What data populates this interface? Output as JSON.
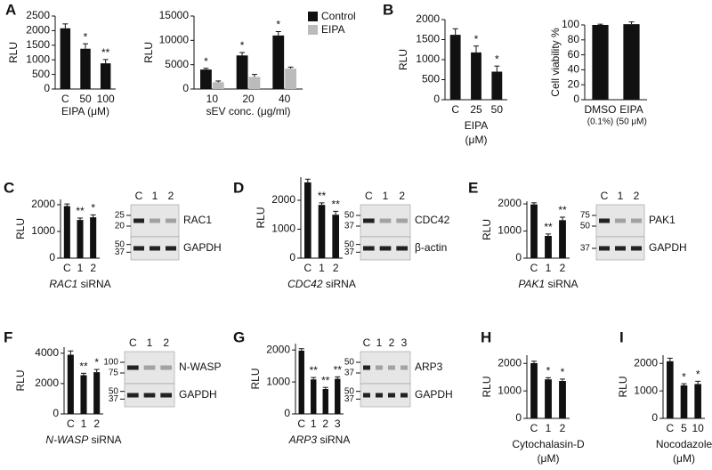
{
  "chart_data": [
    {
      "type": "bar",
      "label": "A",
      "ylabel": "RLU",
      "categories": [
        "C",
        "50",
        "100"
      ],
      "values": [
        2080,
        1380,
        880
      ],
      "errors": [
        150,
        170,
        130
      ],
      "annotations": [
        null,
        "*",
        "**"
      ],
      "color": "#111111",
      "ylim": [
        0,
        2500
      ],
      "yticks": [
        0,
        500,
        1000,
        1500,
        2000,
        2500
      ],
      "xlabel": "EIPA (μM)"
    },
    {
      "type": "bar",
      "ylabel": "RLU",
      "categories": [
        "10",
        "20",
        "40"
      ],
      "series": [
        {
          "name": "Control",
          "color": "#111111",
          "values": [
            4000,
            6900,
            11000
          ],
          "errors": [
            250,
            600,
            800
          ]
        },
        {
          "name": "EIPA",
          "color": "#bbbbbb",
          "values": [
            1400,
            2500,
            4200
          ],
          "errors": [
            250,
            500,
            300
          ]
        }
      ],
      "annotations": [
        "*",
        "*",
        "*"
      ],
      "ylim": [
        0,
        15000
      ],
      "yticks": [
        0,
        5000,
        10000,
        15000
      ],
      "xlabel": "sEV conc. (μg/ml)",
      "legend": "upper right"
    },
    {
      "type": "bar",
      "label": "B",
      "ylabel": "RLU",
      "categories": [
        "C",
        "25",
        "50"
      ],
      "values": [
        1620,
        1180,
        700
      ],
      "errors": [
        150,
        160,
        140
      ],
      "annotations": [
        null,
        "*",
        "*"
      ],
      "color": "#111111",
      "ylim": [
        0,
        2000
      ],
      "yticks": [
        0,
        500,
        1000,
        1500,
        2000
      ],
      "xlabel": [
        "EIPA",
        "(μM)"
      ]
    },
    {
      "type": "bar",
      "ylabel": "Cell viability %",
      "categories": [
        "DMSO",
        "EIPA"
      ],
      "category_notes": [
        "(0.1%)",
        "(50 μM)"
      ],
      "values": [
        100,
        101
      ],
      "errors": [
        1,
        3
      ],
      "color": "#111111",
      "ylim": [
        0,
        100
      ],
      "yticks": [
        0,
        20,
        40,
        60,
        80,
        100
      ]
    },
    {
      "type": "bar",
      "label": "C",
      "ylabel": "RLU",
      "categories": [
        "C",
        "1",
        "2"
      ],
      "values": [
        1950,
        1430,
        1530
      ],
      "errors": [
        80,
        70,
        90
      ],
      "annotations": [
        null,
        "**",
        "*"
      ],
      "color": "#111111",
      "ylim": [
        0,
        2200
      ],
      "yticks": [
        0,
        1000,
        2000
      ],
      "xlabel_italic": "RAC1",
      "xlabel": " siRNA",
      "blot": {
        "lanes": [
          "C",
          "1",
          "2"
        ],
        "strips": [
          {
            "protein": "RAC1",
            "markers": [
              25,
              20
            ]
          },
          {
            "protein": "GAPDH",
            "markers": [
              50,
              37
            ]
          }
        ]
      }
    },
    {
      "type": "bar",
      "label": "D",
      "ylabel": "RLU",
      "categories": [
        "C",
        "1",
        "2"
      ],
      "values": [
        2620,
        1840,
        1500
      ],
      "errors": [
        110,
        70,
        120
      ],
      "annotations": [
        null,
        "**",
        "**"
      ],
      "color": "#111111",
      "ylim": [
        0,
        2800
      ],
      "yticks": [
        0,
        1000,
        2000
      ],
      "xlabel_italic": "CDC42",
      "xlabel": " siRNA",
      "blot": {
        "lanes": [
          "C",
          "1",
          "2"
        ],
        "strips": [
          {
            "protein": "CDC42",
            "markers": [
              50,
              37
            ]
          },
          {
            "protein": "β-actin",
            "markers": [
              50,
              37
            ]
          }
        ]
      }
    },
    {
      "type": "bar",
      "label": "E",
      "ylabel": "RLU",
      "categories": [
        "C",
        "1",
        "2"
      ],
      "values": [
        1980,
        820,
        1400
      ],
      "errors": [
        60,
        70,
        110
      ],
      "annotations": [
        null,
        "**",
        "**"
      ],
      "color": "#111111",
      "ylim": [
        0,
        2100
      ],
      "yticks": [
        0,
        1000,
        2000
      ],
      "xlabel_italic": "PAK1",
      "xlabel": " siRNA",
      "blot": {
        "lanes": [
          "C",
          "1",
          "2"
        ],
        "strips": [
          {
            "protein": "PAK1",
            "markers": [
              75,
              50
            ]
          },
          {
            "protein": "GAPDH",
            "markers": [
              37
            ]
          }
        ]
      }
    },
    {
      "type": "bar",
      "label": "F",
      "ylabel": "RLU",
      "categories": [
        "C",
        "1",
        "2"
      ],
      "values": [
        3900,
        2550,
        2750
      ],
      "errors": [
        250,
        130,
        180
      ],
      "annotations": [
        null,
        "**",
        "*"
      ],
      "color": "#111111",
      "ylim": [
        0,
        4400
      ],
      "yticks": [
        0,
        2000,
        4000
      ],
      "xlabel_italic": "N-WASP",
      "xlabel": " siRNA",
      "blot": {
        "lanes": [
          "C",
          "1",
          "2"
        ],
        "strips": [
          {
            "protein": "N-WASP",
            "markers": [
              100,
              75
            ]
          },
          {
            "protein": "GAPDH",
            "markers": [
              50,
              37
            ]
          }
        ]
      }
    },
    {
      "type": "bar",
      "label": "G",
      "ylabel": "RLU",
      "categories": [
        "C",
        "1",
        "2",
        "3"
      ],
      "values": [
        1980,
        1080,
        780,
        1100
      ],
      "errors": [
        60,
        60,
        50,
        60
      ],
      "annotations": [
        null,
        "**",
        "**",
        "**"
      ],
      "color": "#111111",
      "ylim": [
        0,
        2200
      ],
      "yticks": [
        0,
        1000,
        2000
      ],
      "xlabel_italic": "ARP3",
      "xlabel": " siRNA",
      "blot": {
        "lanes": [
          "C",
          "1",
          "2",
          "3"
        ],
        "strips": [
          {
            "protein": "ARP3",
            "markers": [
              50,
              37
            ]
          },
          {
            "protein": "GAPDH",
            "markers": [
              50,
              37
            ]
          }
        ]
      }
    },
    {
      "type": "bar",
      "label": "H",
      "ylabel": "RLU",
      "categories": [
        "C",
        "1",
        "2"
      ],
      "values": [
        2010,
        1420,
        1360
      ],
      "errors": [
        70,
        60,
        70
      ],
      "annotations": [
        null,
        "*",
        "*"
      ],
      "color": "#111111",
      "ylim": [
        0,
        2300
      ],
      "yticks": [
        0,
        1000,
        2000
      ],
      "xlabel": [
        "Cytochalasin-D",
        "(μM)"
      ]
    },
    {
      "type": "bar",
      "label": "I",
      "ylabel": "RLU",
      "categories": [
        "C",
        "5",
        "10"
      ],
      "values": [
        2080,
        1200,
        1250
      ],
      "errors": [
        110,
        60,
        100
      ],
      "annotations": [
        null,
        "*",
        "*"
      ],
      "color": "#111111",
      "ylim": [
        0,
        2300
      ],
      "yticks": [
        0,
        1000,
        2000
      ],
      "xlabel": [
        "Nocodazole",
        "(μM)"
      ]
    }
  ]
}
